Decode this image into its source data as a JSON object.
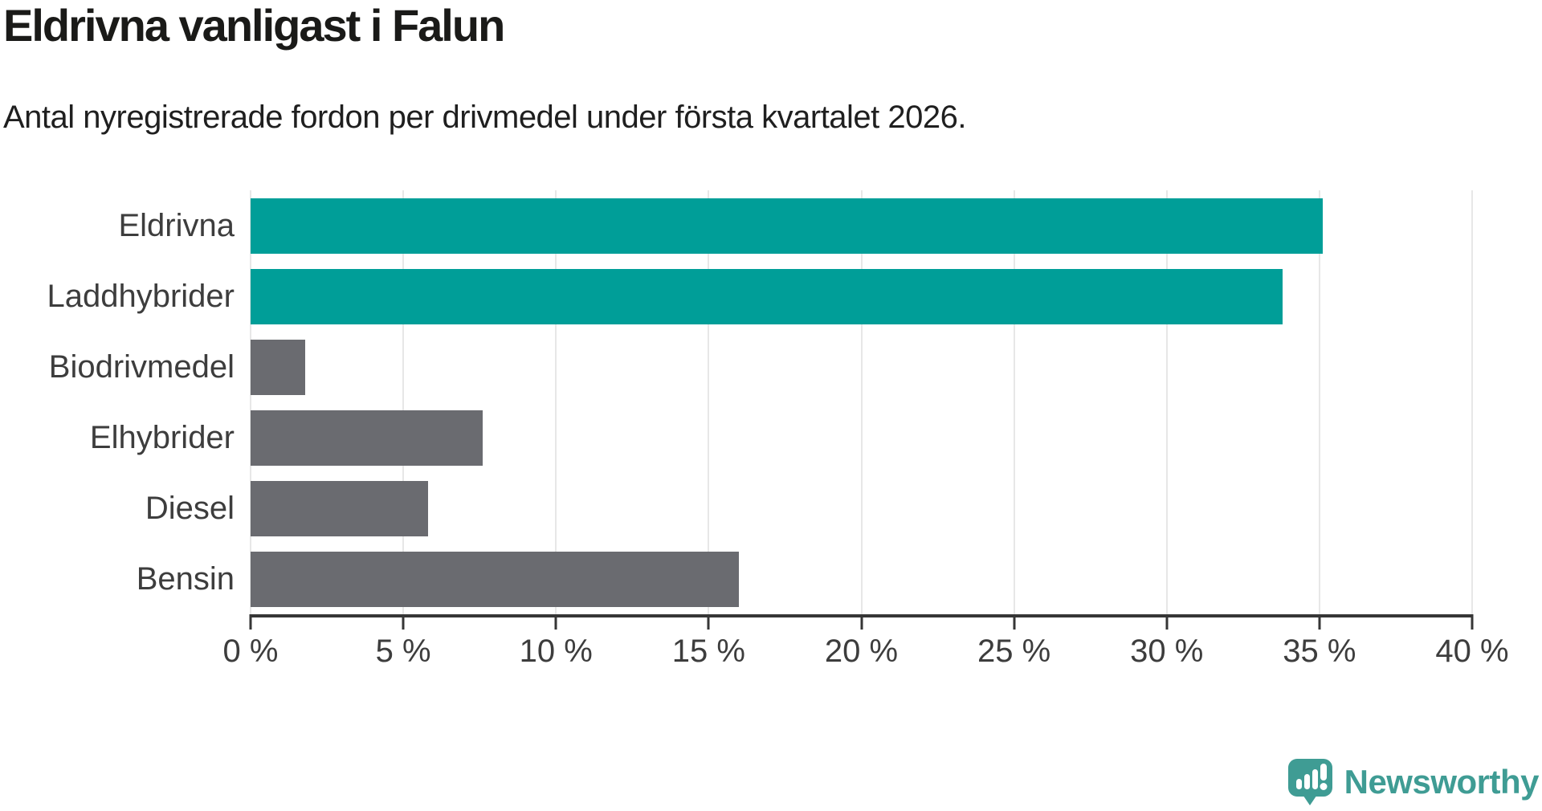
{
  "header": {
    "title": "Eldrivna vanligast i Falun",
    "subtitle": "Antal nyregistrerade fordon per drivmedel under första kvartalet 2026."
  },
  "chart_data": {
    "type": "bar",
    "orientation": "horizontal",
    "title": "Eldrivna vanligast i Falun",
    "subtitle": "Antal nyregistrerade fordon per drivmedel under första kvartalet 2026.",
    "categories": [
      "Eldrivna",
      "Laddhybrider",
      "Biodrivmedel",
      "Elhybrider",
      "Diesel",
      "Bensin"
    ],
    "values": [
      35.1,
      33.8,
      1.8,
      7.6,
      5.8,
      16.0
    ],
    "highlighted": [
      true,
      true,
      false,
      false,
      false,
      false
    ],
    "unit": "%",
    "xlabel": "",
    "ylabel": "",
    "xlim": [
      0,
      40
    ],
    "x_ticks": [
      "0 %",
      "5 %",
      "10 %",
      "15 %",
      "20 %",
      "25 %",
      "30 %",
      "35 %",
      "40 %"
    ],
    "grid": true,
    "legend": "none",
    "colors": {
      "highlight": "#009e98",
      "default": "#6a6b70",
      "gridline": "#e7e7e7",
      "axis": "#363636",
      "label_text": "#3d3d3d"
    }
  },
  "footer": {
    "brand": "Newsworthy",
    "brand_color": "#3f9c94",
    "logo_icon": "newsworthy-speech-bubble-chart-icon"
  }
}
